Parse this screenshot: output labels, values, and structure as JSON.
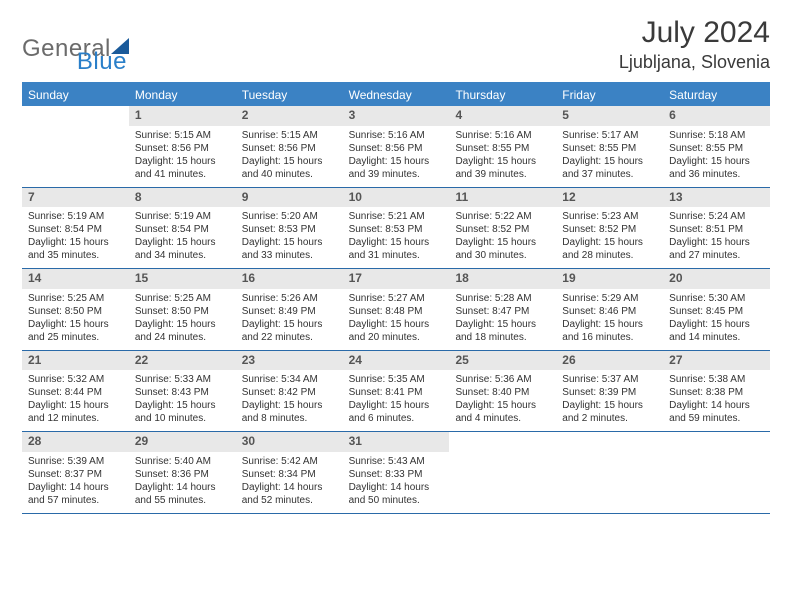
{
  "logo": {
    "part1": "General",
    "part2": "Blue"
  },
  "title": "July 2024",
  "location": "Ljubljana, Slovenia",
  "dows": [
    "Sunday",
    "Monday",
    "Tuesday",
    "Wednesday",
    "Thursday",
    "Friday",
    "Saturday"
  ],
  "header_bg": "#3b82c4",
  "row_border": "#2a6aa8",
  "daynum_bg": "#e8e8e8",
  "weeks": [
    [
      {
        "n": "",
        "sr": "",
        "ss": "",
        "dl": ""
      },
      {
        "n": "1",
        "sr": "Sunrise: 5:15 AM",
        "ss": "Sunset: 8:56 PM",
        "dl": "Daylight: 15 hours and 41 minutes."
      },
      {
        "n": "2",
        "sr": "Sunrise: 5:15 AM",
        "ss": "Sunset: 8:56 PM",
        "dl": "Daylight: 15 hours and 40 minutes."
      },
      {
        "n": "3",
        "sr": "Sunrise: 5:16 AM",
        "ss": "Sunset: 8:56 PM",
        "dl": "Daylight: 15 hours and 39 minutes."
      },
      {
        "n": "4",
        "sr": "Sunrise: 5:16 AM",
        "ss": "Sunset: 8:55 PM",
        "dl": "Daylight: 15 hours and 39 minutes."
      },
      {
        "n": "5",
        "sr": "Sunrise: 5:17 AM",
        "ss": "Sunset: 8:55 PM",
        "dl": "Daylight: 15 hours and 37 minutes."
      },
      {
        "n": "6",
        "sr": "Sunrise: 5:18 AM",
        "ss": "Sunset: 8:55 PM",
        "dl": "Daylight: 15 hours and 36 minutes."
      }
    ],
    [
      {
        "n": "7",
        "sr": "Sunrise: 5:19 AM",
        "ss": "Sunset: 8:54 PM",
        "dl": "Daylight: 15 hours and 35 minutes."
      },
      {
        "n": "8",
        "sr": "Sunrise: 5:19 AM",
        "ss": "Sunset: 8:54 PM",
        "dl": "Daylight: 15 hours and 34 minutes."
      },
      {
        "n": "9",
        "sr": "Sunrise: 5:20 AM",
        "ss": "Sunset: 8:53 PM",
        "dl": "Daylight: 15 hours and 33 minutes."
      },
      {
        "n": "10",
        "sr": "Sunrise: 5:21 AM",
        "ss": "Sunset: 8:53 PM",
        "dl": "Daylight: 15 hours and 31 minutes."
      },
      {
        "n": "11",
        "sr": "Sunrise: 5:22 AM",
        "ss": "Sunset: 8:52 PM",
        "dl": "Daylight: 15 hours and 30 minutes."
      },
      {
        "n": "12",
        "sr": "Sunrise: 5:23 AM",
        "ss": "Sunset: 8:52 PM",
        "dl": "Daylight: 15 hours and 28 minutes."
      },
      {
        "n": "13",
        "sr": "Sunrise: 5:24 AM",
        "ss": "Sunset: 8:51 PM",
        "dl": "Daylight: 15 hours and 27 minutes."
      }
    ],
    [
      {
        "n": "14",
        "sr": "Sunrise: 5:25 AM",
        "ss": "Sunset: 8:50 PM",
        "dl": "Daylight: 15 hours and 25 minutes."
      },
      {
        "n": "15",
        "sr": "Sunrise: 5:25 AM",
        "ss": "Sunset: 8:50 PM",
        "dl": "Daylight: 15 hours and 24 minutes."
      },
      {
        "n": "16",
        "sr": "Sunrise: 5:26 AM",
        "ss": "Sunset: 8:49 PM",
        "dl": "Daylight: 15 hours and 22 minutes."
      },
      {
        "n": "17",
        "sr": "Sunrise: 5:27 AM",
        "ss": "Sunset: 8:48 PM",
        "dl": "Daylight: 15 hours and 20 minutes."
      },
      {
        "n": "18",
        "sr": "Sunrise: 5:28 AM",
        "ss": "Sunset: 8:47 PM",
        "dl": "Daylight: 15 hours and 18 minutes."
      },
      {
        "n": "19",
        "sr": "Sunrise: 5:29 AM",
        "ss": "Sunset: 8:46 PM",
        "dl": "Daylight: 15 hours and 16 minutes."
      },
      {
        "n": "20",
        "sr": "Sunrise: 5:30 AM",
        "ss": "Sunset: 8:45 PM",
        "dl": "Daylight: 15 hours and 14 minutes."
      }
    ],
    [
      {
        "n": "21",
        "sr": "Sunrise: 5:32 AM",
        "ss": "Sunset: 8:44 PM",
        "dl": "Daylight: 15 hours and 12 minutes."
      },
      {
        "n": "22",
        "sr": "Sunrise: 5:33 AM",
        "ss": "Sunset: 8:43 PM",
        "dl": "Daylight: 15 hours and 10 minutes."
      },
      {
        "n": "23",
        "sr": "Sunrise: 5:34 AM",
        "ss": "Sunset: 8:42 PM",
        "dl": "Daylight: 15 hours and 8 minutes."
      },
      {
        "n": "24",
        "sr": "Sunrise: 5:35 AM",
        "ss": "Sunset: 8:41 PM",
        "dl": "Daylight: 15 hours and 6 minutes."
      },
      {
        "n": "25",
        "sr": "Sunrise: 5:36 AM",
        "ss": "Sunset: 8:40 PM",
        "dl": "Daylight: 15 hours and 4 minutes."
      },
      {
        "n": "26",
        "sr": "Sunrise: 5:37 AM",
        "ss": "Sunset: 8:39 PM",
        "dl": "Daylight: 15 hours and 2 minutes."
      },
      {
        "n": "27",
        "sr": "Sunrise: 5:38 AM",
        "ss": "Sunset: 8:38 PM",
        "dl": "Daylight: 14 hours and 59 minutes."
      }
    ],
    [
      {
        "n": "28",
        "sr": "Sunrise: 5:39 AM",
        "ss": "Sunset: 8:37 PM",
        "dl": "Daylight: 14 hours and 57 minutes."
      },
      {
        "n": "29",
        "sr": "Sunrise: 5:40 AM",
        "ss": "Sunset: 8:36 PM",
        "dl": "Daylight: 14 hours and 55 minutes."
      },
      {
        "n": "30",
        "sr": "Sunrise: 5:42 AM",
        "ss": "Sunset: 8:34 PM",
        "dl": "Daylight: 14 hours and 52 minutes."
      },
      {
        "n": "31",
        "sr": "Sunrise: 5:43 AM",
        "ss": "Sunset: 8:33 PM",
        "dl": "Daylight: 14 hours and 50 minutes."
      },
      {
        "n": "",
        "sr": "",
        "ss": "",
        "dl": ""
      },
      {
        "n": "",
        "sr": "",
        "ss": "",
        "dl": ""
      },
      {
        "n": "",
        "sr": "",
        "ss": "",
        "dl": ""
      }
    ]
  ]
}
